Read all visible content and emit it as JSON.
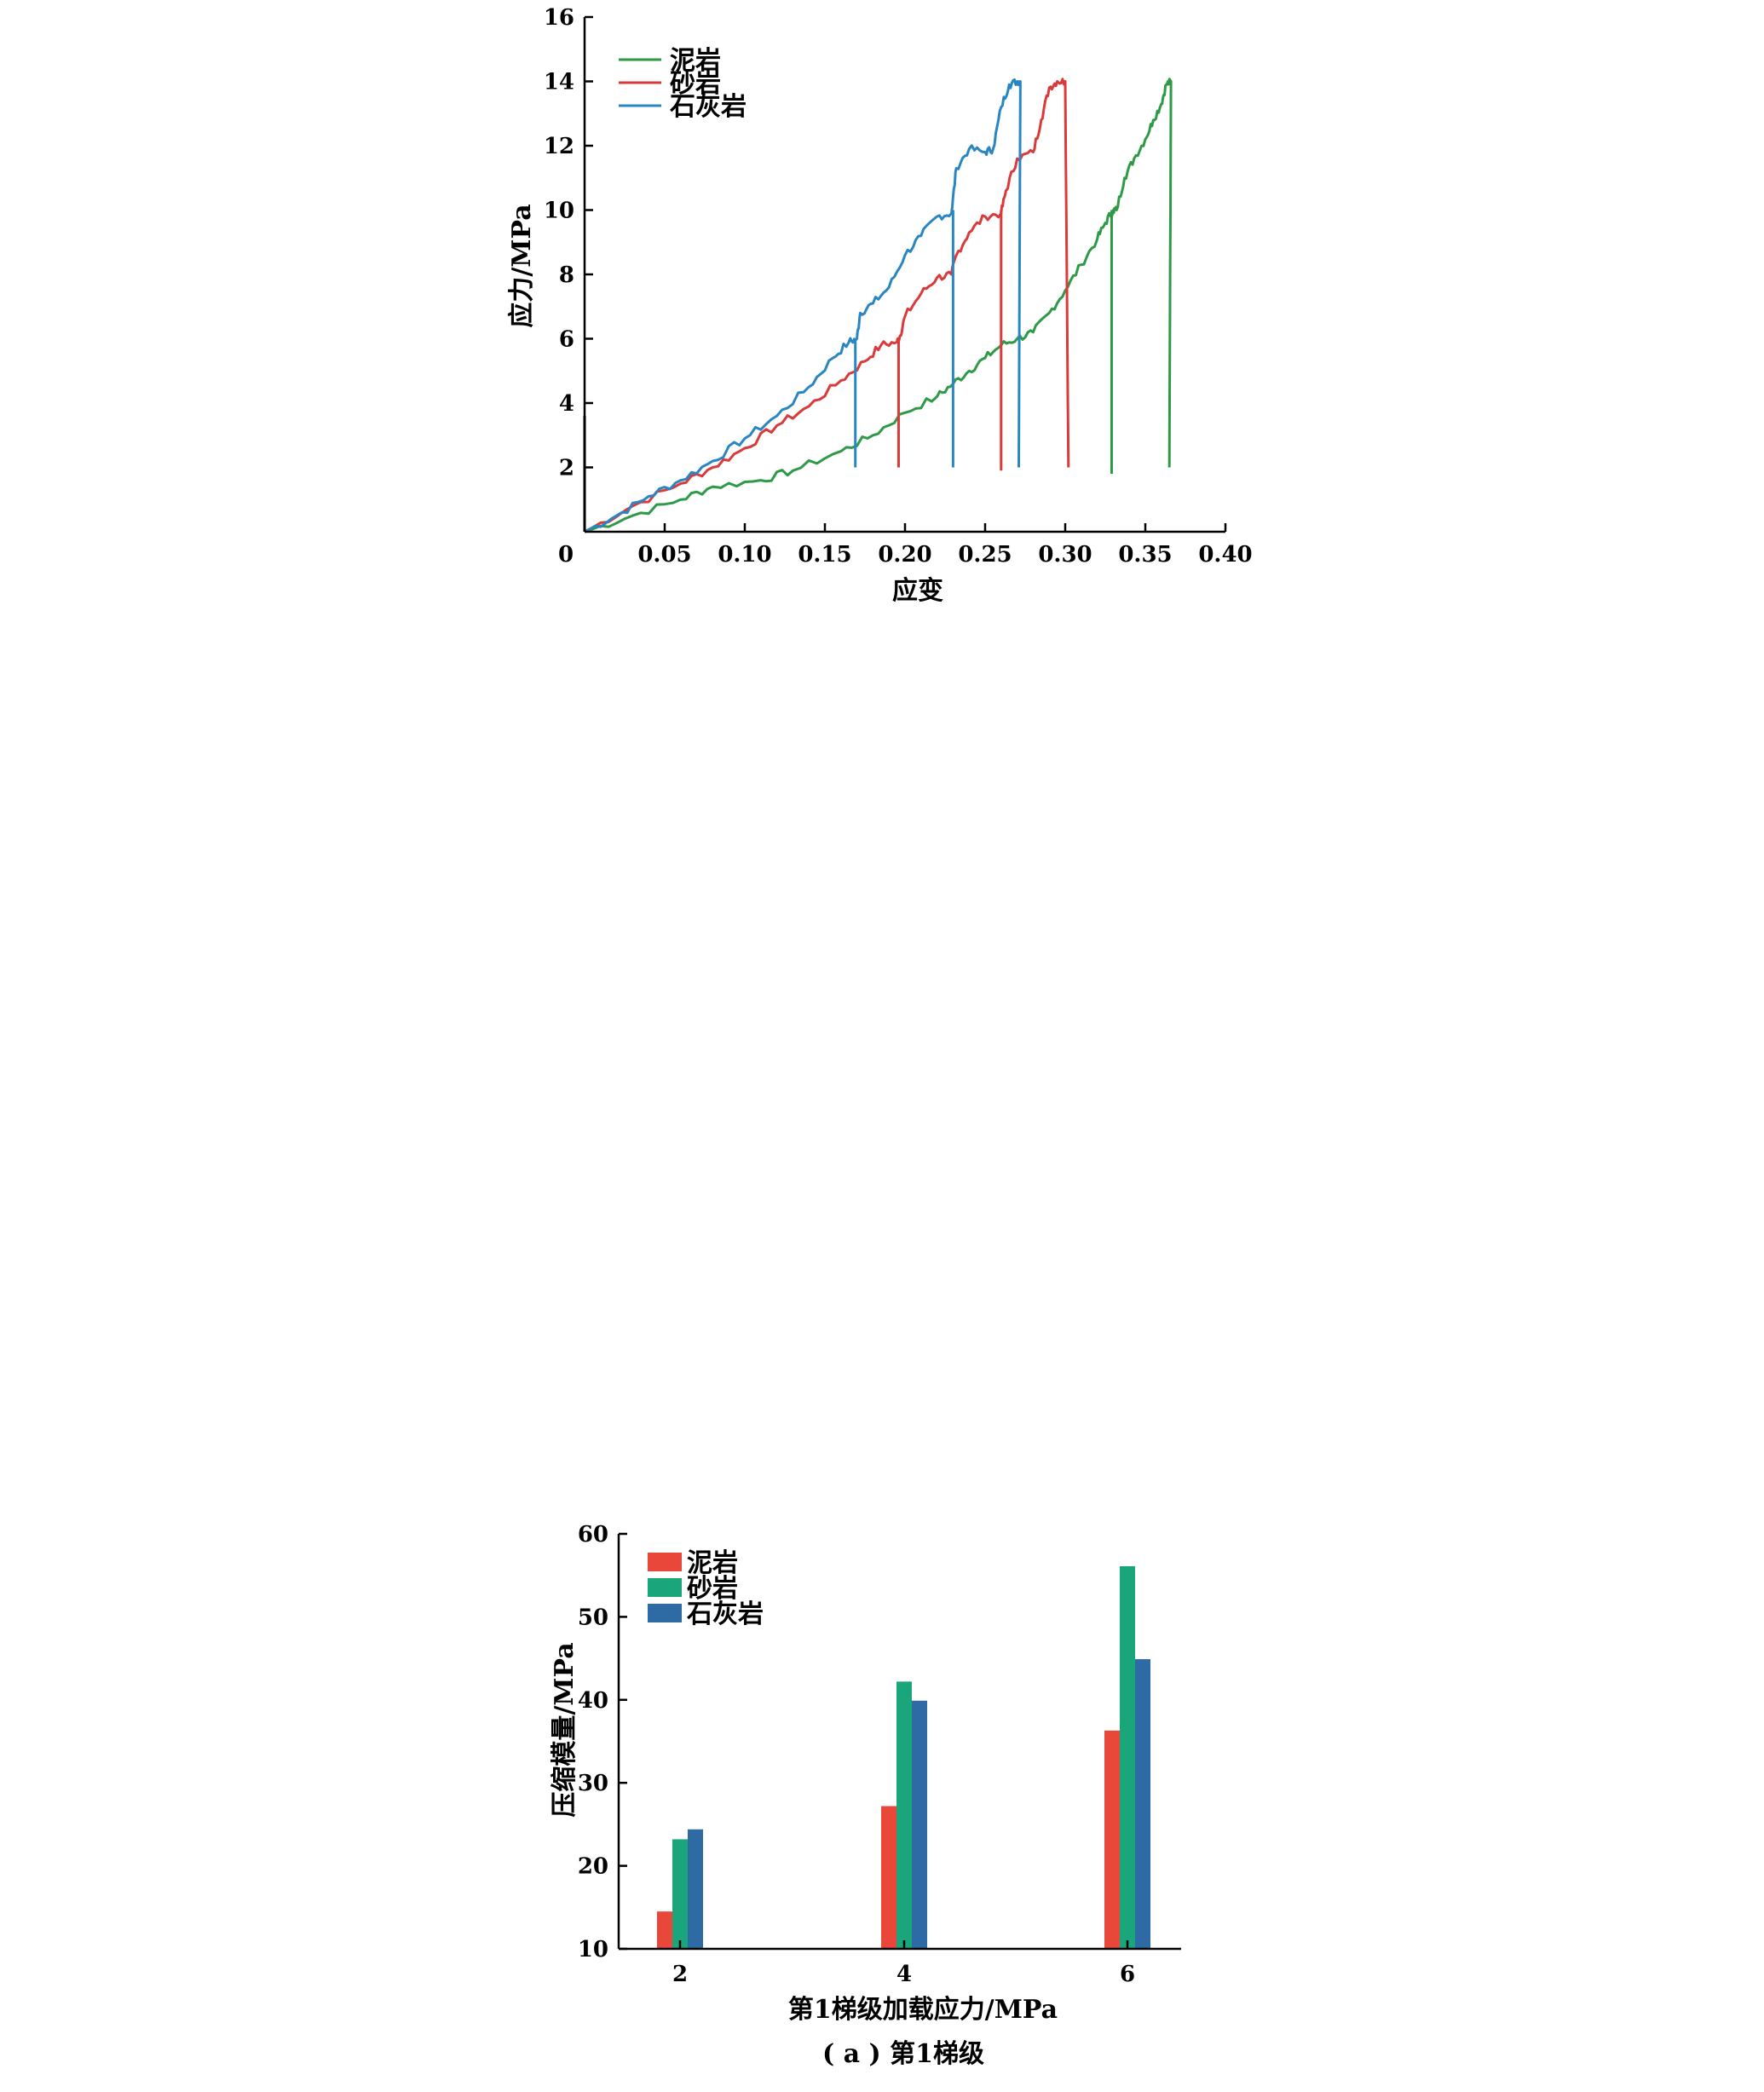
{
  "chart_data": [
    {
      "type": "line",
      "title": "",
      "xlabel": "应变",
      "ylabel": "应力/MPa",
      "xlim": [
        0,
        0.4
      ],
      "ylim": [
        0,
        16
      ],
      "x_ticks": [
        "0",
        "0.05",
        "0.10",
        "0.15",
        "0.20",
        "0.25",
        "0.30",
        "0.35",
        "0.40"
      ],
      "y_ticks": [
        "2",
        "4",
        "6",
        "8",
        "10",
        "12",
        "14",
        "16"
      ],
      "legend_position": "top-left",
      "series": [
        {
          "name": "泥岩",
          "color": "#2e9a47",
          "points": [
            [
              0,
              0
            ],
            [
              0.03,
              0.5
            ],
            [
              0.06,
              1.0
            ],
            [
              0.08,
              1.4
            ],
            [
              0.11,
              1.6
            ],
            [
              0.13,
              1.9
            ],
            [
              0.16,
              2.5
            ],
            [
              0.18,
              3.0
            ],
            [
              0.2,
              3.7
            ],
            [
              0.22,
              4.2
            ],
            [
              0.23,
              4.6
            ],
            [
              0.24,
              5.0
            ],
            [
              0.25,
              5.4
            ],
            [
              0.26,
              5.8
            ],
            [
              0.27,
              6.0
            ],
            [
              0.28,
              6.2
            ],
            [
              0.29,
              6.8
            ],
            [
              0.3,
              7.5
            ],
            [
              0.31,
              8.3
            ],
            [
              0.32,
              9.1
            ],
            [
              0.325,
              9.6
            ],
            [
              0.33,
              10.0
            ],
            [
              0.332,
              10.0
            ],
            [
              0.337,
              11.0
            ],
            [
              0.343,
              11.6
            ],
            [
              0.35,
              12.2
            ],
            [
              0.355,
              12.8
            ],
            [
              0.36,
              13.3
            ],
            [
              0.363,
              13.9
            ],
            [
              0.366,
              14.0
            ],
            [
              0.365,
              2.0
            ]
          ]
        },
        {
          "name": "砂岩",
          "color": "#d93a3a",
          "points": [
            [
              0,
              0
            ],
            [
              0.03,
              0.8
            ],
            [
              0.06,
              1.5
            ],
            [
              0.08,
              2.0
            ],
            [
              0.1,
              2.6
            ],
            [
              0.12,
              3.3
            ],
            [
              0.14,
              3.9
            ],
            [
              0.16,
              4.7
            ],
            [
              0.175,
              5.3
            ],
            [
              0.185,
              5.8
            ],
            [
              0.195,
              5.9
            ],
            [
              0.197,
              6.1
            ],
            [
              0.2,
              6.7
            ],
            [
              0.21,
              7.4
            ],
            [
              0.22,
              7.9
            ],
            [
              0.229,
              8.0
            ],
            [
              0.232,
              8.6
            ],
            [
              0.24,
              9.3
            ],
            [
              0.25,
              9.8
            ],
            [
              0.26,
              9.9
            ],
            [
              0.263,
              10.6
            ],
            [
              0.27,
              11.6
            ],
            [
              0.28,
              11.8
            ],
            [
              0.285,
              12.8
            ],
            [
              0.29,
              13.8
            ],
            [
              0.295,
              14.0
            ],
            [
              0.3,
              14.0
            ],
            [
              0.302,
              2.0
            ]
          ]
        },
        {
          "name": "石灰岩",
          "color": "#2a86c3",
          "points": [
            [
              0,
              0
            ],
            [
              0.02,
              0.5
            ],
            [
              0.04,
              1.1
            ],
            [
              0.06,
              1.6
            ],
            [
              0.08,
              2.2
            ],
            [
              0.1,
              2.9
            ],
            [
              0.12,
              3.6
            ],
            [
              0.14,
              4.5
            ],
            [
              0.155,
              5.4
            ],
            [
              0.165,
              5.9
            ],
            [
              0.17,
              6.0
            ],
            [
              0.172,
              6.8
            ],
            [
              0.18,
              7.1
            ],
            [
              0.19,
              7.6
            ],
            [
              0.2,
              8.6
            ],
            [
              0.21,
              9.2
            ],
            [
              0.22,
              9.8
            ],
            [
              0.229,
              9.9
            ],
            [
              0.232,
              11.3
            ],
            [
              0.24,
              11.9
            ],
            [
              0.25,
              11.8
            ],
            [
              0.255,
              11.9
            ],
            [
              0.26,
              13.2
            ],
            [
              0.265,
              13.9
            ],
            [
              0.27,
              14.0
            ],
            [
              0.272,
              14.0
            ],
            [
              0.271,
              2.0
            ]
          ]
        }
      ],
      "unload_drops": [
        {
          "series": "泥岩",
          "points": [
            [
              0.329,
              10.0
            ],
            [
              0.329,
              1.8
            ]
          ]
        },
        {
          "series": "砂岩",
          "points": [
            [
              0.196,
              6.0
            ],
            [
              0.196,
              2.0
            ]
          ]
        },
        {
          "series": "砂岩",
          "points": [
            [
              0.26,
              10.0
            ],
            [
              0.26,
              1.9
            ]
          ]
        },
        {
          "series": "石灰岩",
          "points": [
            [
              0.169,
              6.0
            ],
            [
              0.169,
              2.0
            ]
          ]
        },
        {
          "series": "石灰岩",
          "points": [
            [
              0.23,
              10.0
            ],
            [
              0.23,
              2.0
            ]
          ]
        }
      ]
    },
    {
      "type": "bar",
      "title": "",
      "xlabel": "第1梯级加载应力/MPa",
      "ylabel": "压缩模量/MPa",
      "caption": "( a ) 第1梯级",
      "categories": [
        "2",
        "4",
        "6"
      ],
      "ylim": [
        10,
        60
      ],
      "y_ticks": [
        "10",
        "20",
        "30",
        "40",
        "50",
        "60"
      ],
      "legend_position": "top-left",
      "series": [
        {
          "name": "泥岩",
          "color": "#e8473a",
          "values": [
            14.5,
            27.2,
            36.3
          ]
        },
        {
          "name": "砂岩",
          "color": "#1aa67a",
          "values": [
            23.2,
            42.2,
            56.1
          ]
        },
        {
          "name": "石灰岩",
          "color": "#2e6aa4",
          "values": [
            24.4,
            39.9,
            44.9
          ]
        }
      ]
    }
  ]
}
